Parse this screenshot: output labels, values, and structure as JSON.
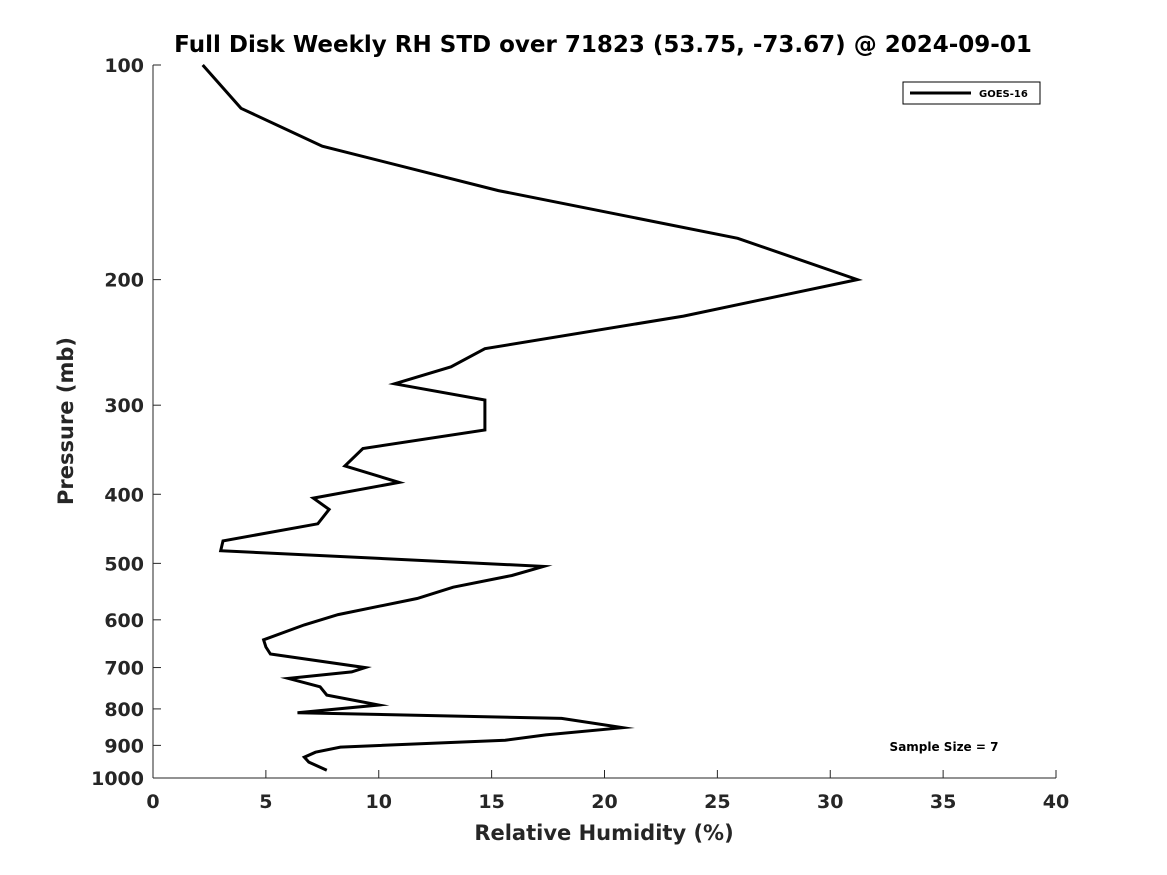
{
  "chart_data": {
    "type": "line",
    "title": "Full Disk Weekly RH STD over 71823 (53.75, -73.67) @ 2024-09-01",
    "xlabel": "Relative Humidity (%)",
    "ylabel": "Pressure (mb)",
    "xlim": [
      0,
      40
    ],
    "ylim": [
      1000,
      100
    ],
    "yscale": "log",
    "xticks": [
      0,
      5,
      10,
      15,
      20,
      25,
      30,
      35,
      40
    ],
    "yticks": [
      100,
      200,
      300,
      400,
      500,
      600,
      700,
      800,
      900,
      1000
    ],
    "legend": {
      "position": "top-right",
      "entries": [
        "GOES-16"
      ]
    },
    "annotation": "Sample Size = 7",
    "series": [
      {
        "name": "GOES-16",
        "color": "#000000",
        "x": [
          2.2,
          3.9,
          7.5,
          15.3,
          25.9,
          31.2,
          23.5,
          14.7,
          13.2,
          10.7,
          14.7,
          14.7,
          9.3,
          8.5,
          10.9,
          7.1,
          7.8,
          7.3,
          3.1,
          3.0,
          17.3,
          15.9,
          13.3,
          11.7,
          8.2,
          6.7,
          4.9,
          5.0,
          5.2,
          9.4,
          8.8,
          6.0,
          7.4,
          7.7,
          10.0,
          6.4,
          18.1,
          20.8,
          17.4,
          15.6,
          8.3,
          7.2,
          6.7,
          6.9,
          7.7
        ],
        "y": [
          100,
          115,
          130,
          150,
          175,
          200,
          225,
          250,
          265,
          280,
          295,
          325,
          345,
          365,
          385,
          405,
          420,
          440,
          465,
          480,
          505,
          520,
          540,
          560,
          590,
          610,
          640,
          655,
          670,
          700,
          710,
          725,
          745,
          765,
          790,
          810,
          825,
          850,
          870,
          885,
          905,
          920,
          935,
          950,
          975
        ]
      }
    ]
  }
}
